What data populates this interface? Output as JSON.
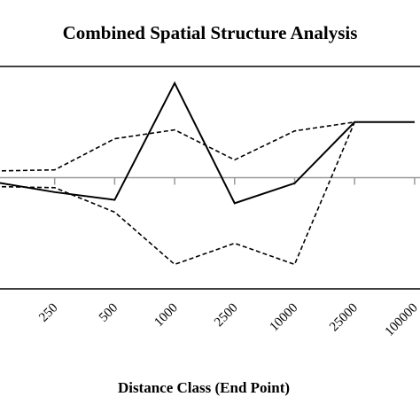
{
  "chart_data": {
    "type": "line",
    "title": "Combined Spatial Structure Analysis",
    "x_label": "Distance Class (End Point)",
    "categories": [
      null,
      "250",
      "500",
      "1000",
      "2500",
      "10000",
      "25000",
      "100000"
    ],
    "series": [
      {
        "color": "#000000",
        "dashed": false,
        "values": [
          -0.04,
          -0.13,
          -0.2,
          0.85,
          -0.23,
          -0.05,
          0.5,
          0.5
        ]
      },
      {
        "color": "#000000",
        "dashed": true,
        "values": [
          0.06,
          0.07,
          0.35,
          0.43,
          0.16,
          0.42,
          0.5,
          0.5
        ]
      },
      {
        "color": "#000000",
        "dashed": true,
        "values": [
          -0.08,
          -0.09,
          -0.31,
          -0.78,
          -0.59,
          -0.78,
          0.5,
          0.5
        ]
      }
    ],
    "ylim": [
      -1,
      1
    ]
  }
}
